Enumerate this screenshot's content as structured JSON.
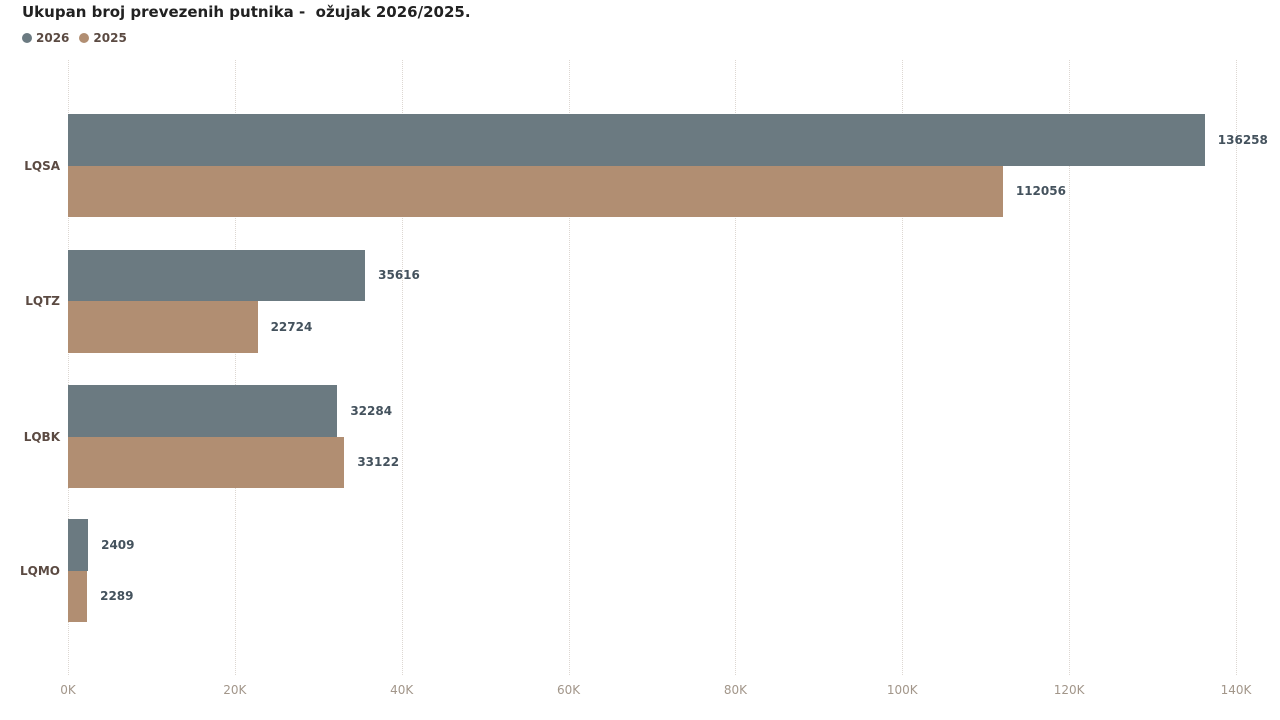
{
  "header": {
    "title": "Ukupan broj prevezenih putnika -  ožujak 2026/2025."
  },
  "legend": {
    "items": [
      {
        "label": "2026",
        "color": "#6b7a81"
      },
      {
        "label": "2025",
        "color": "#b18e72"
      }
    ]
  },
  "chart_data": {
    "type": "bar",
    "orientation": "horizontal",
    "title": "Ukupan broj prevezenih putnika -  ožujak 2026/2025.",
    "categories": [
      "LQSA",
      "LQTZ",
      "LQBK",
      "LQMO"
    ],
    "series": [
      {
        "name": "2026",
        "color": "#6b7a81",
        "values": [
          136258,
          35616,
          32284,
          2409
        ]
      },
      {
        "name": "2025",
        "color": "#b18e72",
        "values": [
          112056,
          22724,
          33122,
          2289
        ]
      }
    ],
    "value_labels": [
      [
        "136258",
        "35616",
        "32284",
        "2409"
      ],
      [
        "112056",
        "22724",
        "33122",
        "2289"
      ]
    ],
    "xlabel": "",
    "ylabel": "",
    "xlim": [
      0,
      140000
    ],
    "x_tick_labels": [
      "0K",
      "20K",
      "40K",
      "60K",
      "80K",
      "100K",
      "120K",
      "140K"
    ],
    "x_tick_values": [
      0,
      20000,
      40000,
      60000,
      80000,
      100000,
      120000,
      140000
    ],
    "grid": "vertical-dotted",
    "legend_position": "top-left"
  },
  "colors": {
    "series_2026": "#6b7a81",
    "series_2025": "#b18e72",
    "value_label": "#44525d",
    "category_label": "#5b4a42",
    "tick_label": "#a2968a",
    "gridline": "#ddd7d2",
    "title": "#212121",
    "background": "#ffffff"
  }
}
